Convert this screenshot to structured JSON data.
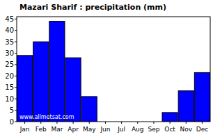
{
  "chart_data": {
    "type": "bar",
    "title": "Mazari Sharif : precipitation (mm)",
    "categories": [
      "Jan",
      "Feb",
      "Mar",
      "Apr",
      "May",
      "Jun",
      "Jul",
      "Aug",
      "Sep",
      "Oct",
      "Nov",
      "Dec"
    ],
    "values": [
      29,
      35,
      44,
      28,
      11,
      0,
      0,
      0,
      0,
      4,
      13.5,
      21.5
    ],
    "color": "#0000ff",
    "ylim": [
      0,
      46
    ],
    "yticks": [
      0,
      5,
      10,
      15,
      20,
      25,
      30,
      35,
      40,
      45
    ],
    "grid": false,
    "annotations": [
      "www.allmetsat.com"
    ]
  }
}
